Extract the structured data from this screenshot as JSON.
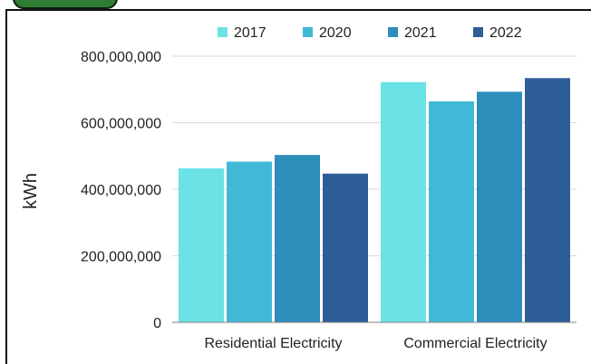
{
  "colors": {
    "2017": "#6ae2e6",
    "2020": "#41b8d6",
    "2021": "#2d8dbb",
    "2022": "#2e5e99",
    "gridline": "#d9d9d9",
    "axis": "#808080",
    "tab_fill": "#2e7d32"
  },
  "chart_data": {
    "type": "bar",
    "categories": [
      "Residential Electricity",
      "Commercial Electricity"
    ],
    "series": [
      {
        "name": "2017",
        "values": [
          463000000,
          722000000
        ]
      },
      {
        "name": "2020",
        "values": [
          483000000,
          664000000
        ]
      },
      {
        "name": "2021",
        "values": [
          503000000,
          693000000
        ]
      },
      {
        "name": "2022",
        "values": [
          447000000,
          734000000
        ]
      }
    ],
    "ylabel": "kWh",
    "xlabel": "",
    "title": "",
    "ylim": [
      0,
      800000000
    ],
    "yticks": [
      0,
      200000000,
      400000000,
      600000000,
      800000000
    ],
    "ytick_labels": [
      "0",
      "200,000,000",
      "400,000,000",
      "600,000,000",
      "800,000,000"
    ],
    "grid": true,
    "legend_position": "top"
  }
}
